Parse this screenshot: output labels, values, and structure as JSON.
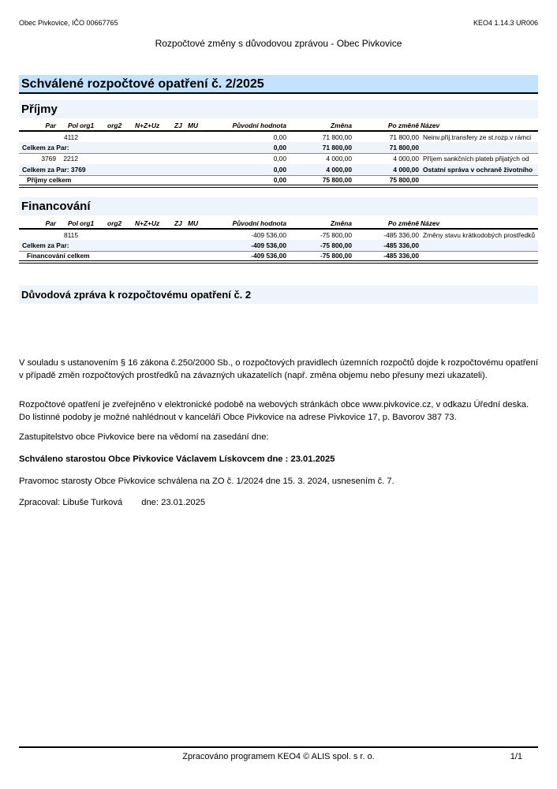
{
  "header": {
    "left": "Obec Pivkovice, IČO 00667765",
    "right": "KEO4 1.14.3 UR006",
    "title": "Rozpočtové změny s důvodovou zprávou - Obec Pivkovice"
  },
  "main_title": "Schválené rozpočtové opatření  č. 2/2025",
  "columns": [
    "Par",
    "Pol",
    "org1",
    "org2",
    "N+Z+Uz",
    "ZJ",
    "MU",
    "Původní hodnota",
    "Změna",
    "Po změně",
    "Název"
  ],
  "prijmy": {
    "title": "Příjmy",
    "rows": [
      {
        "par": "",
        "pol": "4112",
        "puvodni": "0,00",
        "zmena": "71 800,00",
        "po": "71 800,00",
        "nazev": "Neinv.přij.transfery ze st.rozp.v rámci"
      },
      {
        "label": "Celkem za Par:",
        "puvodni": "0,00",
        "zmena": "71 800,00",
        "po": "71 800,00",
        "nazev": ""
      },
      {
        "par": "3769",
        "pol": "2212",
        "puvodni": "0,00",
        "zmena": "4 000,00",
        "po": "4 000,00",
        "nazev": "Příjem sankčních plateb přijatých od"
      },
      {
        "label": "Celkem za Par: 3769",
        "puvodni": "0,00",
        "zmena": "4 000,00",
        "po": "4 000,00",
        "nazev": "Ostatní správa v ochraně životního"
      },
      {
        "label": "Příjmy celkem",
        "puvodni": "0,00",
        "zmena": "75 800,00",
        "po": "75 800,00",
        "nazev": ""
      }
    ]
  },
  "financovani": {
    "title": "Financování",
    "rows": [
      {
        "par": "",
        "pol": "8115",
        "puvodni": "-409 536,00",
        "zmena": "-75 800,00",
        "po": "-485 336,00",
        "nazev": "Změny stavu krátkodobých prostředků"
      },
      {
        "label": "Celkem za Par:",
        "puvodni": "-409 536,00",
        "zmena": "-75 800,00",
        "po": "-485 336,00",
        "nazev": ""
      },
      {
        "label": "Financování celkem",
        "puvodni": "-409 536,00",
        "zmena": "-75 800,00",
        "po": "-485 336,00",
        "nazev": ""
      }
    ]
  },
  "zprava": {
    "title": "Důvodová zpráva k rozpočtovému opatření č. 2",
    "p1": "V souladu s ustanovením § 16 zákona č.250/2000 Sb., o rozpočtových pravidlech územních rozpočtů dojde k rozpočtovému opatření v případě změn rozpočtových prostředků na závazných ukazatelích (např. změna objemu nebo přesuny mezi ukazateli).",
    "p2": "Rozpočtové opatření je zveřejněno v elektronické podobě na webových stránkách obce www.pivkovice.cz,  v odkazu Úřední deska. Do listinné podoby je možné nahlédnout v kanceláři Obce Pivkovice na adrese Pivkovice 17, p. Bavorov 387 73.",
    "p3": "Zastupitelstvo obce Pivkovice bere na vědomí na zasedání dne:",
    "p4": "Schváleno starostou Obce Pivkovice Václavem Lískovcem dne : 23.01.2025",
    "p5": "Pravomoc starosty Obce Pivkovice schválena na ZO č. 1/2024 dne 15. 3. 2024, usnesením č. 7.",
    "p6a": "Zpracoval: Libuše Turková",
    "p6b": "dne: 23.01.2025"
  },
  "footer": {
    "text": "Zpracováno programem KEO4 © ALIS spol. s r. o.",
    "page": "1/1"
  }
}
